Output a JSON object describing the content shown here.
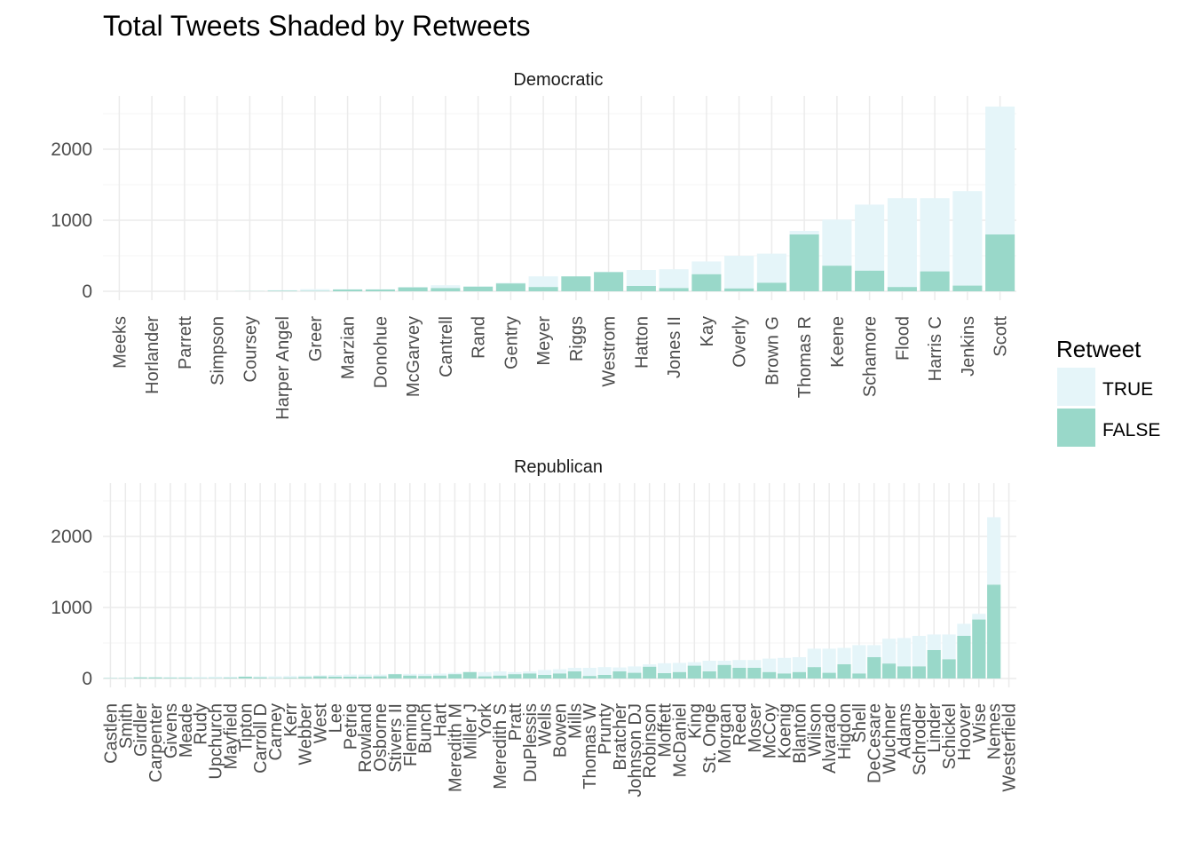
{
  "colors": {
    "true_fill": "#e5f5f9",
    "false_fill": "#99d8c9",
    "grid_major": "#ebebeb",
    "grid_minor": "#f4f4f4",
    "text": "#4d4d4d"
  },
  "chart_data": {
    "type": "bar",
    "stacked": true,
    "title": "Total Tweets Shaded by Retweets",
    "legend": {
      "title": "Retweet",
      "labels": [
        "TRUE",
        "FALSE"
      ],
      "position": "right"
    },
    "ylim": [
      0,
      2600
    ],
    "yticks": [
      0,
      1000,
      2000
    ],
    "grid": true,
    "panels": [
      {
        "label": "Democratic",
        "categories": [
          "Meeks",
          "Horlander",
          "Parrett",
          "Simpson",
          "Coursey",
          "Harper Angel",
          "Greer",
          "Marzian",
          "Donohue",
          "McGarvey",
          "Cantrell",
          "Rand",
          "Gentry",
          "Meyer",
          "Riggs",
          "Westrom",
          "Hatton",
          "Jones II",
          "Kay",
          "Overly",
          "Brown G",
          "Thomas R",
          "Keene",
          "Schamore",
          "Flood",
          "Harris C",
          "Jenkins",
          "Scott"
        ],
        "series": [
          {
            "name": "FALSE",
            "values": [
              0,
              0,
              0,
              0,
              2,
              8,
              5,
              25,
              25,
              55,
              45,
              65,
              110,
              60,
              210,
              270,
              75,
              45,
              240,
              40,
              120,
              800,
              360,
              290,
              60,
              280,
              80,
              800
            ]
          },
          {
            "name": "TRUE",
            "values": [
              0,
              0,
              0,
              1,
              2,
              8,
              25,
              5,
              5,
              5,
              40,
              5,
              10,
              150,
              0,
              5,
              225,
              265,
              180,
              460,
              410,
              50,
              650,
              930,
              1250,
              1030,
              1330,
              1800
            ]
          }
        ]
      },
      {
        "label": "Republican",
        "categories": [
          "Castlen",
          "Smith",
          "Girdler",
          "Carpenter",
          "Givens",
          "Meade",
          "Rudy",
          "Upchurch",
          "Mayfield",
          "Tipton",
          "Carroll D",
          "Carney",
          "Kerr",
          "Webber",
          "West",
          "Lee",
          "Petrie",
          "Rowland",
          "Osborne",
          "Stivers II",
          "Fleming",
          "Bunch",
          "Hart",
          "Meredith M",
          "Miller J",
          "York",
          "Meredith S",
          "Pratt",
          "DuPlessis",
          "Wells",
          "Bowen",
          "Mills",
          "Thomas W",
          "Prunty",
          "Bratcher",
          "Johnson DJ",
          "Robinson",
          "Moffett",
          "McDaniel",
          "King",
          "St. Onge",
          "Morgan",
          "Reed",
          "Moser",
          "McCoy",
          "Koenig",
          "Blanton",
          "Wilson",
          "Alvarado",
          "Higdon",
          "Shell",
          "DeCesare",
          "Wuchner",
          "Adams",
          "Schroder",
          "Linder",
          "Schickel",
          "Hoover",
          "Wise",
          "Nemes",
          "Westerfield"
        ],
        "series": [
          {
            "name": "FALSE",
            "values": [
              5,
              5,
              15,
              15,
              10,
              10,
              5,
              5,
              10,
              25,
              15,
              5,
              10,
              20,
              30,
              25,
              25,
              25,
              30,
              60,
              40,
              35,
              40,
              60,
              90,
              30,
              40,
              60,
              70,
              50,
              70,
              100,
              35,
              50,
              100,
              80,
              165,
              75,
              90,
              180,
              100,
              190,
              150,
              150,
              90,
              70,
              90,
              160,
              80,
              200,
              70,
              300,
              210,
              170,
              170,
              400,
              270,
              600,
              830,
              1320,
              0
            ],
            "__note": ""
          },
          {
            "name": "TRUE",
            "values": [
              5,
              5,
              5,
              5,
              10,
              10,
              15,
              20,
              15,
              5,
              15,
              25,
              25,
              20,
              15,
              25,
              30,
              30,
              25,
              5,
              25,
              30,
              30,
              20,
              5,
              60,
              60,
              30,
              30,
              70,
              60,
              50,
              115,
              110,
              55,
              90,
              35,
              140,
              130,
              50,
              150,
              60,
              110,
              110,
              190,
              220,
              210,
              260,
              340,
              230,
              400,
              170,
              350,
              400,
              430,
              220,
              350,
              170,
              80,
              950,
              0
            ]
          }
        ]
      }
    ]
  }
}
